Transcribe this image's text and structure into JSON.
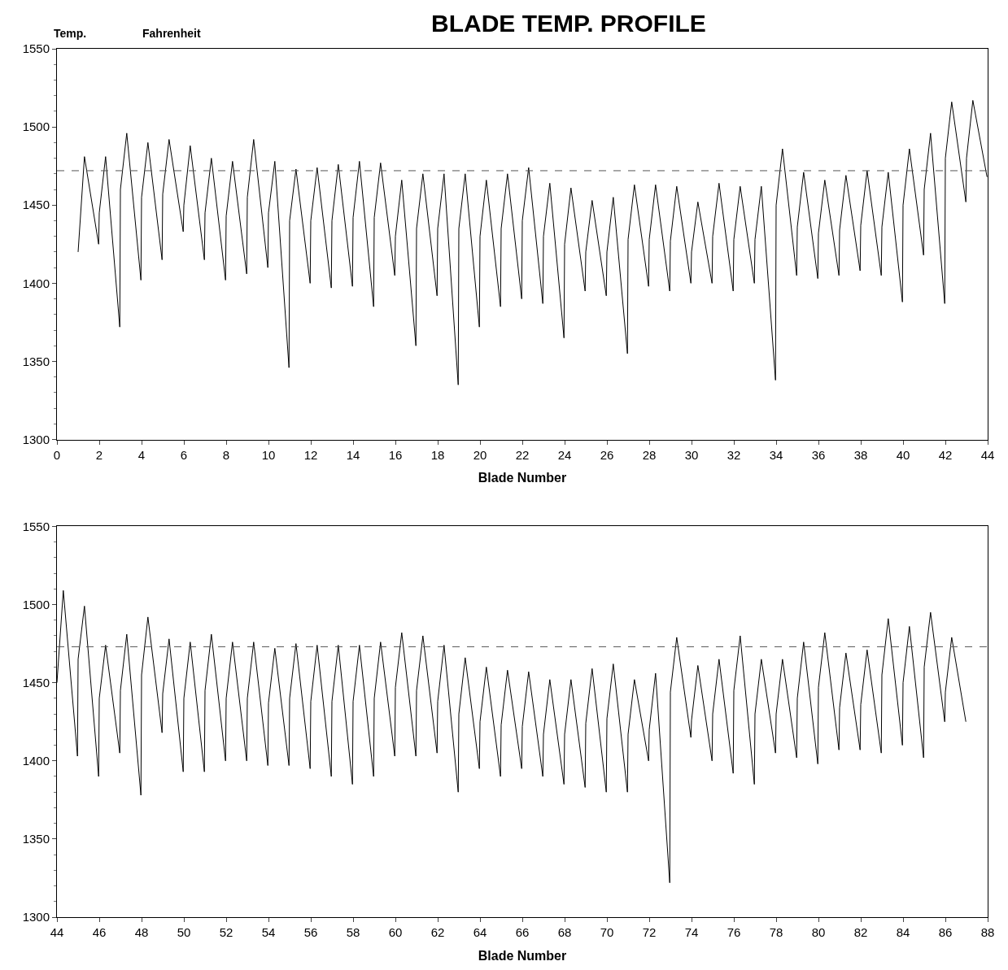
{
  "chart_data": [
    {
      "type": "line",
      "title": "BLADE TEMP. PROFILE",
      "ylabel": "Temp.",
      "xlabel": "Blade Number",
      "annotations": [
        "Fahrenheit"
      ],
      "xlim": [
        0,
        44
      ],
      "xticks": [
        0,
        2,
        4,
        6,
        8,
        10,
        12,
        14,
        16,
        18,
        20,
        22,
        24,
        26,
        28,
        30,
        32,
        34,
        36,
        38,
        40,
        42,
        44
      ],
      "ylim": [
        1300,
        1550
      ],
      "yticks": [
        1300,
        1350,
        1400,
        1450,
        1500,
        1550
      ],
      "ref_lines": [
        {
          "axis": "y",
          "value": 1472,
          "line_style": "dashed",
          "color": "#555555"
        }
      ],
      "series": [
        {
          "color": "#000000",
          "x": [
            1,
            1.3,
            1.97,
            2,
            2.3,
            2.97,
            3,
            3.3,
            3.97,
            4,
            4.3,
            4.97,
            5,
            5.3,
            5.97,
            6,
            6.3,
            6.97,
            7,
            7.3,
            7.97,
            8,
            8.3,
            8.97,
            9,
            9.3,
            9.97,
            10,
            10.3,
            10.97,
            11,
            11.3,
            11.97,
            12,
            12.3,
            12.97,
            13,
            13.3,
            13.97,
            14,
            14.3,
            14.97,
            15,
            15.3,
            15.97,
            16,
            16.3,
            16.97,
            17,
            17.3,
            17.97,
            18,
            18.3,
            18.97,
            19,
            19.3,
            19.97,
            20,
            20.3,
            20.97,
            21,
            21.3,
            21.97,
            22,
            22.3,
            22.97,
            23,
            23.3,
            23.97,
            24,
            24.3,
            24.97,
            25,
            25.3,
            25.97,
            26,
            26.3,
            26.97,
            27,
            27.3,
            27.97,
            28,
            28.3,
            28.97,
            29,
            29.3,
            29.97,
            30,
            30.3,
            30.97,
            31,
            31.3,
            31.97,
            32,
            32.3,
            32.97,
            33,
            33.3,
            33.97,
            34,
            34.3,
            34.97,
            35,
            35.3,
            35.97,
            36,
            36.3,
            36.97,
            37,
            37.3,
            37.97,
            38,
            38.3,
            38.97,
            39,
            39.3,
            39.97,
            40,
            40.3,
            40.97,
            41,
            41.3,
            41.97,
            42,
            42.3,
            42.97,
            43,
            43.3,
            43.97
          ],
          "values": [
            1420,
            1481,
            1425,
            1445,
            1481,
            1372,
            1460,
            1496,
            1402,
            1455,
            1490,
            1415,
            1457,
            1492,
            1433,
            1450,
            1488,
            1415,
            1445,
            1480,
            1402,
            1443,
            1478,
            1406,
            1455,
            1492,
            1410,
            1445,
            1478,
            1346,
            1440,
            1473,
            1400,
            1440,
            1474,
            1397,
            1440,
            1476,
            1398,
            1442,
            1478,
            1385,
            1442,
            1477,
            1405,
            1430,
            1466,
            1360,
            1435,
            1470,
            1392,
            1435,
            1470,
            1335,
            1435,
            1470,
            1372,
            1430,
            1466,
            1385,
            1435,
            1470,
            1390,
            1440,
            1474,
            1387,
            1430,
            1464,
            1365,
            1425,
            1461,
            1395,
            1420,
            1453,
            1392,
            1420,
            1455,
            1355,
            1428,
            1463,
            1398,
            1428,
            1463,
            1395,
            1427,
            1462,
            1400,
            1420,
            1452,
            1400,
            1430,
            1464,
            1395,
            1428,
            1462,
            1400,
            1428,
            1462,
            1338,
            1450,
            1486,
            1405,
            1436,
            1471,
            1403,
            1432,
            1466,
            1405,
            1434,
            1469,
            1408,
            1437,
            1472,
            1405,
            1436,
            1471,
            1388,
            1450,
            1486,
            1418,
            1460,
            1496,
            1387,
            1480,
            1516,
            1452,
            1480,
            1517,
            1468
          ]
        }
      ]
    },
    {
      "type": "line",
      "xlabel": "Blade Number",
      "xlim": [
        44,
        88
      ],
      "xticks": [
        44,
        46,
        48,
        50,
        52,
        54,
        56,
        58,
        60,
        62,
        64,
        66,
        68,
        70,
        72,
        74,
        76,
        78,
        80,
        82,
        84,
        86,
        88
      ],
      "ylim": [
        1300,
        1550
      ],
      "yticks": [
        1300,
        1350,
        1400,
        1450,
        1500,
        1550
      ],
      "ref_lines": [
        {
          "axis": "y",
          "value": 1473,
          "line_style": "dashed",
          "color": "#555555"
        }
      ],
      "series": [
        {
          "color": "#000000",
          "x": [
            44,
            44.3,
            44.97,
            45,
            45.3,
            45.97,
            46,
            46.3,
            46.97,
            47,
            47.3,
            47.97,
            48,
            48.3,
            48.97,
            49,
            49.3,
            49.97,
            50,
            50.3,
            50.97,
            51,
            51.3,
            51.97,
            52,
            52.3,
            52.97,
            53,
            53.3,
            53.97,
            54,
            54.3,
            54.97,
            55,
            55.3,
            55.97,
            56,
            56.3,
            56.97,
            57,
            57.3,
            57.97,
            58,
            58.3,
            58.97,
            59,
            59.3,
            59.97,
            60,
            60.3,
            60.97,
            61,
            61.3,
            61.97,
            62,
            62.3,
            62.97,
            63,
            63.3,
            63.97,
            64,
            64.3,
            64.97,
            65,
            65.3,
            65.97,
            66,
            66.3,
            66.97,
            67,
            67.3,
            67.97,
            68,
            68.3,
            68.97,
            69,
            69.3,
            69.97,
            70,
            70.3,
            70.97,
            71,
            71.3,
            71.97,
            72,
            72.3,
            72.97,
            73,
            73.3,
            73.97,
            74,
            74.3,
            74.97,
            75,
            75.3,
            75.97,
            76,
            76.3,
            76.97,
            77,
            77.3,
            77.97,
            78,
            78.3,
            78.97,
            79,
            79.3,
            79.97,
            80,
            80.3,
            80.97,
            81,
            81.3,
            81.97,
            82,
            82.3,
            82.97,
            83,
            83.3,
            83.97,
            84,
            84.3,
            84.97,
            85,
            85.3,
            85.97,
            86,
            86.3,
            86.97
          ],
          "values": [
            1450,
            1509,
            1403,
            1465,
            1499,
            1390,
            1440,
            1474,
            1405,
            1445,
            1481,
            1378,
            1455,
            1492,
            1418,
            1443,
            1478,
            1393,
            1440,
            1476,
            1393,
            1445,
            1481,
            1400,
            1440,
            1476,
            1400,
            1440,
            1476,
            1397,
            1437,
            1472,
            1397,
            1440,
            1475,
            1395,
            1438,
            1474,
            1390,
            1438,
            1474,
            1385,
            1438,
            1474,
            1390,
            1440,
            1476,
            1403,
            1447,
            1482,
            1403,
            1445,
            1480,
            1405,
            1438,
            1474,
            1380,
            1430,
            1466,
            1395,
            1425,
            1460,
            1390,
            1423,
            1458,
            1395,
            1422,
            1457,
            1390,
            1417,
            1452,
            1385,
            1417,
            1452,
            1383,
            1424,
            1459,
            1380,
            1427,
            1462,
            1380,
            1417,
            1452,
            1400,
            1420,
            1456,
            1322,
            1444,
            1479,
            1415,
            1426,
            1461,
            1400,
            1430,
            1465,
            1392,
            1445,
            1480,
            1385,
            1430,
            1465,
            1405,
            1430,
            1465,
            1402,
            1440,
            1476,
            1398,
            1447,
            1482,
            1407,
            1434,
            1469,
            1407,
            1436,
            1471,
            1405,
            1455,
            1491,
            1410,
            1450,
            1486,
            1402,
            1460,
            1495,
            1425,
            1444,
            1479,
            1425
          ]
        }
      ]
    }
  ]
}
